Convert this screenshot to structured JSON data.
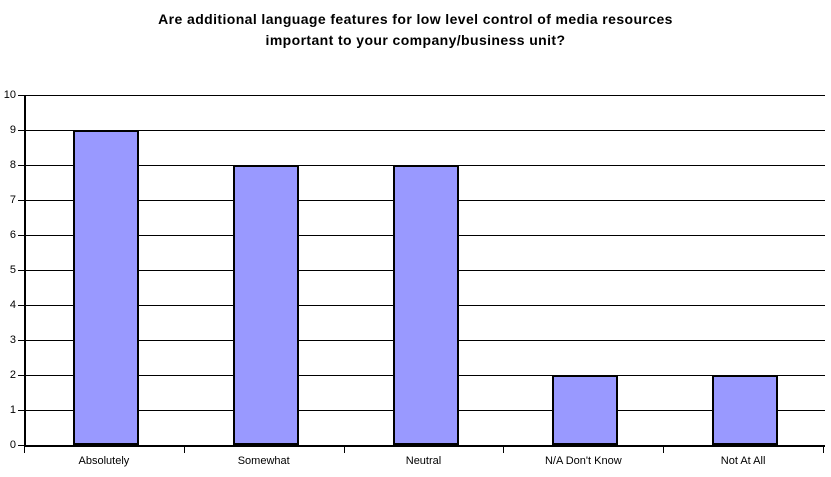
{
  "chart_data": {
    "type": "bar",
    "title": "Are additional language features for low level control of media resources important to your company/business unit?",
    "title_lines": [
      "Are additional language features for low level control of media resources",
      "important to your company/business unit?"
    ],
    "categories": [
      "Absolutely",
      "Somewhat",
      "Neutral",
      "N/A Don't Know",
      "Not At All"
    ],
    "values": [
      9,
      8,
      8,
      2,
      2
    ],
    "xlabel": "",
    "ylabel": "",
    "ylim": [
      0,
      10
    ],
    "ytick_step": 1,
    "grid": true,
    "legend_position": "none",
    "colors": {
      "bar_fill": "#9999FF",
      "bar_border": "#000000",
      "gridline": "#000000",
      "axis": "#000000",
      "text": "#000000",
      "background": "#FFFFFF"
    }
  }
}
